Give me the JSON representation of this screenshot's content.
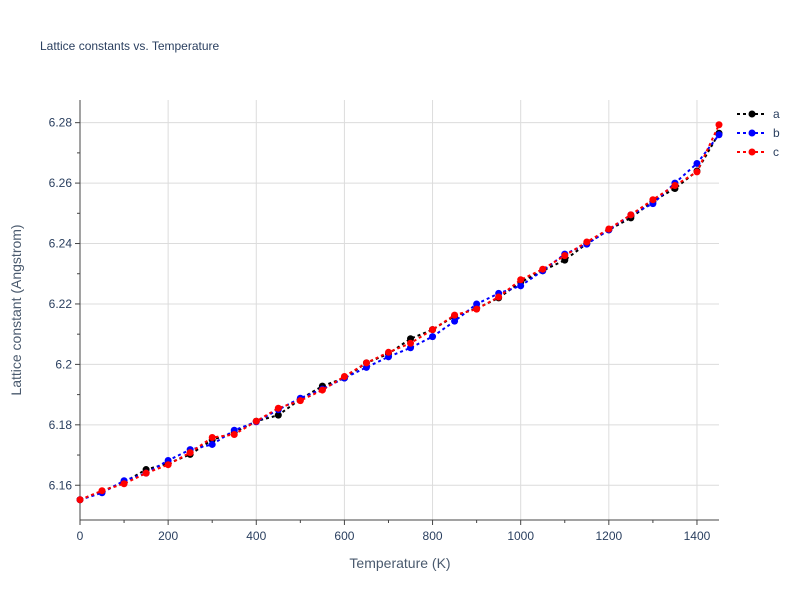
{
  "chart_data": {
    "type": "line",
    "title": "Lattice constants vs. Temperature",
    "xlabel": "Temperature (K)",
    "ylabel": "Lattice constant (Angstrom)",
    "xlim": [
      0,
      1450
    ],
    "ylim": [
      6.1485,
      6.2875
    ],
    "x_ticks": [
      0,
      200,
      400,
      600,
      800,
      1000,
      1200,
      1400
    ],
    "y_ticks": [
      6.16,
      6.18,
      6.2,
      6.22,
      6.24,
      6.26,
      6.28
    ],
    "x_tick_labels": [
      "0",
      "200",
      "400",
      "600",
      "800",
      "1000",
      "1200",
      "1400"
    ],
    "y_tick_labels": [
      "6.16",
      "6.18",
      "6.2",
      "6.22",
      "6.24",
      "6.26",
      "6.28"
    ],
    "grid": true,
    "legend_position": "top-right",
    "x": [
      0,
      50,
      100,
      150,
      200,
      250,
      300,
      350,
      400,
      450,
      500,
      550,
      600,
      650,
      700,
      750,
      800,
      850,
      900,
      950,
      1000,
      1050,
      1100,
      1150,
      1200,
      1250,
      1300,
      1350,
      1400,
      1450
    ],
    "series": [
      {
        "name": "a",
        "color": "#000000",
        "values": [
          6.1552,
          6.158,
          6.161,
          6.1652,
          6.1672,
          6.1702,
          6.175,
          6.1775,
          6.1812,
          6.1832,
          6.1885,
          6.1928,
          6.1955,
          6.2005,
          6.2035,
          6.2085,
          6.2115,
          6.216,
          6.2185,
          6.222,
          6.2272,
          6.231,
          6.2345,
          6.24,
          6.2445,
          6.2485,
          6.254,
          6.2582,
          6.264,
          6.2765
        ]
      },
      {
        "name": "b",
        "color": "#0000ff",
        "values": [
          6.1552,
          6.1575,
          6.1615,
          6.164,
          6.1682,
          6.1718,
          6.1735,
          6.1782,
          6.181,
          6.185,
          6.1888,
          6.1918,
          6.1955,
          6.199,
          6.2025,
          6.2055,
          6.2092,
          6.2143,
          6.22,
          6.2235,
          6.226,
          6.231,
          6.2365,
          6.2398,
          6.2445,
          6.2495,
          6.2532,
          6.26,
          6.2665,
          6.276
        ]
      },
      {
        "name": "c",
        "color": "#ff0000",
        "values": [
          6.1552,
          6.1582,
          6.1605,
          6.164,
          6.1668,
          6.1708,
          6.1758,
          6.1768,
          6.1812,
          6.1855,
          6.188,
          6.1915,
          6.196,
          6.2005,
          6.204,
          6.207,
          6.2115,
          6.2163,
          6.2183,
          6.2223,
          6.228,
          6.2315,
          6.236,
          6.2405,
          6.2448,
          6.2495,
          6.2545,
          6.2592,
          6.2637,
          6.2793
        ]
      }
    ]
  }
}
